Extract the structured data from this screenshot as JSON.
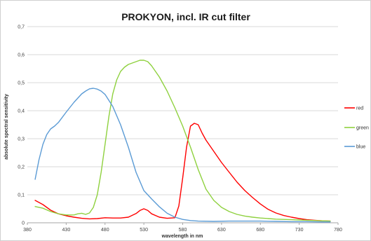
{
  "chart_data": {
    "type": "line",
    "title": "PROKYON, incl. IR cut filter",
    "xlabel": "wavelength in nm",
    "ylabel": "absolute spectral sensitivity",
    "xlim": [
      380,
      780
    ],
    "ylim": [
      0,
      0.7
    ],
    "x_ticks": [
      "380",
      "430",
      "480",
      "530",
      "580",
      "630",
      "680",
      "730",
      "780"
    ],
    "y_ticks": [
      "0",
      "0,1",
      "0,2",
      "0,3",
      "0,4",
      "0,5",
      "0,6",
      "0,7"
    ],
    "grid": "horizontal",
    "legend": "right",
    "series": [
      {
        "name": "red",
        "color": "#ff0000",
        "x": [
          390,
          400,
          410,
          420,
          430,
          440,
          450,
          460,
          470,
          480,
          490,
          500,
          510,
          520,
          525,
          530,
          535,
          540,
          550,
          560,
          570,
          575,
          580,
          585,
          590,
          595,
          600,
          605,
          610,
          620,
          630,
          640,
          650,
          660,
          670,
          680,
          690,
          700,
          710,
          720,
          730,
          740,
          750,
          760,
          770
        ],
        "y": [
          0.08,
          0.065,
          0.045,
          0.032,
          0.025,
          0.02,
          0.016,
          0.014,
          0.015,
          0.018,
          0.017,
          0.017,
          0.02,
          0.033,
          0.044,
          0.05,
          0.044,
          0.032,
          0.02,
          0.016,
          0.018,
          0.06,
          0.16,
          0.27,
          0.345,
          0.355,
          0.35,
          0.32,
          0.295,
          0.255,
          0.215,
          0.18,
          0.145,
          0.115,
          0.09,
          0.067,
          0.048,
          0.035,
          0.026,
          0.02,
          0.015,
          0.011,
          0.009,
          0.007,
          0.006
        ]
      },
      {
        "name": "green",
        "color": "#8fd13f",
        "x": [
          390,
          400,
          410,
          420,
          430,
          440,
          445,
          450,
          455,
          460,
          465,
          470,
          475,
          480,
          485,
          490,
          495,
          500,
          505,
          510,
          515,
          520,
          525,
          530,
          535,
          540,
          550,
          560,
          570,
          580,
          590,
          600,
          610,
          620,
          630,
          640,
          650,
          660,
          670,
          680,
          690,
          700,
          710,
          720,
          730,
          740,
          750,
          760,
          770
        ],
        "y": [
          0.058,
          0.052,
          0.04,
          0.032,
          0.028,
          0.028,
          0.032,
          0.034,
          0.03,
          0.035,
          0.055,
          0.1,
          0.18,
          0.28,
          0.38,
          0.46,
          0.51,
          0.54,
          0.555,
          0.565,
          0.57,
          0.575,
          0.58,
          0.58,
          0.575,
          0.56,
          0.52,
          0.47,
          0.41,
          0.345,
          0.27,
          0.19,
          0.12,
          0.08,
          0.055,
          0.04,
          0.03,
          0.024,
          0.02,
          0.017,
          0.015,
          0.013,
          0.012,
          0.011,
          0.01,
          0.009,
          0.008,
          0.007,
          0.006
        ]
      },
      {
        "name": "blue",
        "color": "#5b9bd5",
        "x": [
          390,
          395,
          400,
          405,
          410,
          415,
          420,
          430,
          440,
          450,
          455,
          460,
          465,
          470,
          475,
          480,
          490,
          500,
          510,
          520,
          530,
          540,
          550,
          560,
          570,
          580,
          590,
          600,
          620,
          640,
          660,
          680,
          700,
          720,
          740,
          760,
          770
        ],
        "y": [
          0.155,
          0.225,
          0.28,
          0.315,
          0.335,
          0.345,
          0.358,
          0.395,
          0.43,
          0.46,
          0.47,
          0.478,
          0.48,
          0.477,
          0.47,
          0.458,
          0.415,
          0.35,
          0.27,
          0.18,
          0.115,
          0.085,
          0.057,
          0.034,
          0.02,
          0.012,
          0.008,
          0.006,
          0.005,
          0.006,
          0.006,
          0.006,
          0.005,
          0.004,
          0.004,
          0.003,
          0.003
        ]
      }
    ]
  }
}
